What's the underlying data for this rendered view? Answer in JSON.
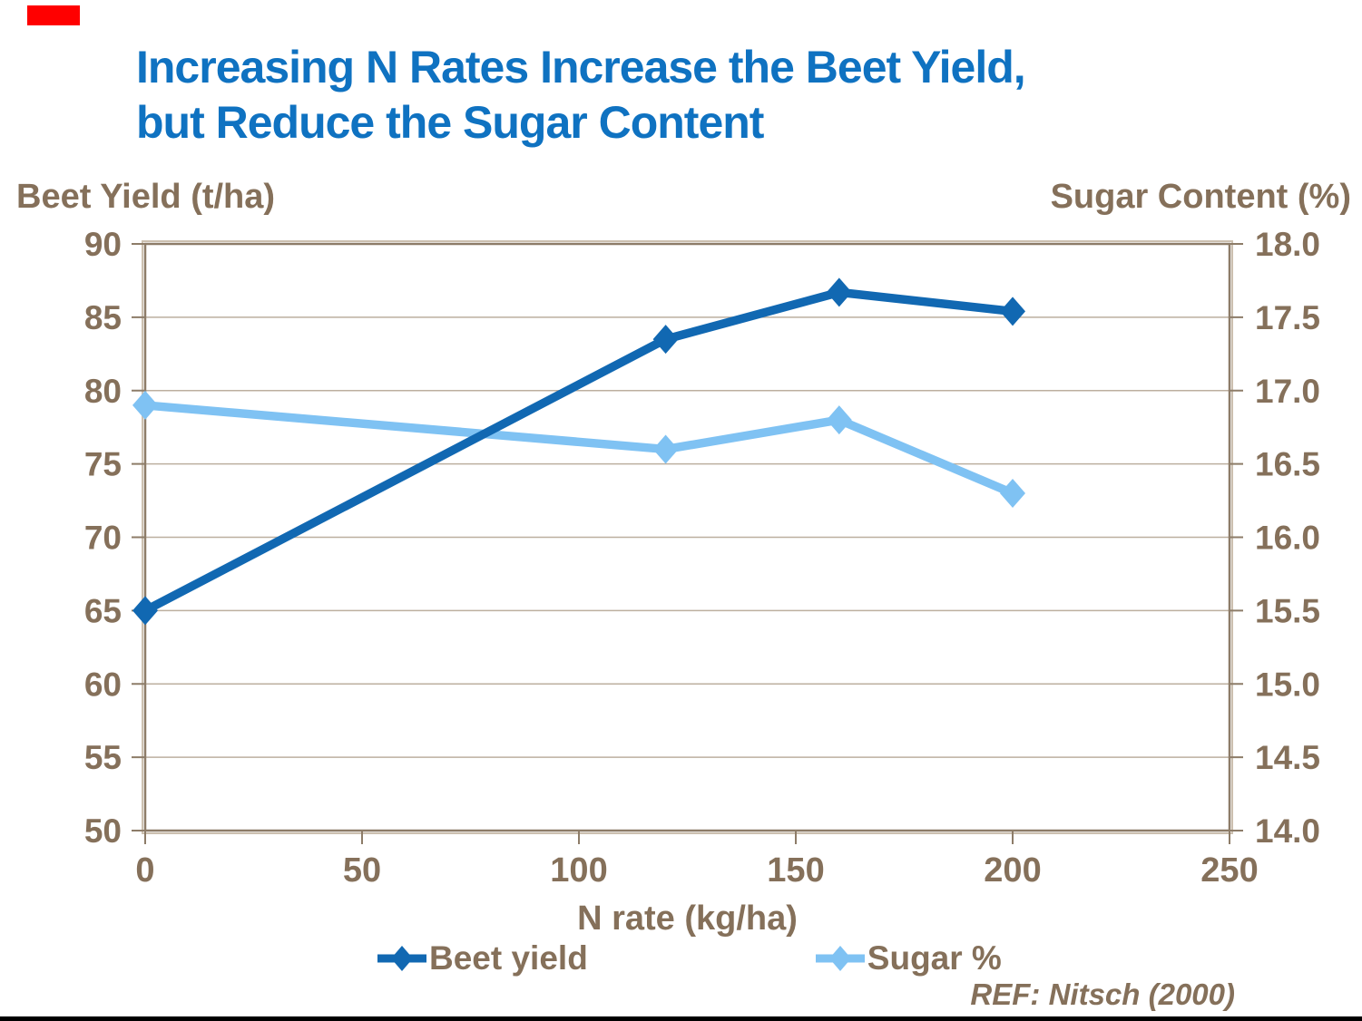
{
  "slide": {
    "title_line1": "Increasing N Rates Increase the Beet Yield,",
    "title_line2": "but Reduce the Sugar Content",
    "reference": "REF: Nitsch (2000)",
    "colors": {
      "title": "#0F72C1",
      "axis_text": "#85705A",
      "grid": "#BCAF9F",
      "frame": "#8D7C68",
      "frame_shadow": "#CCC0B0",
      "beet": "#1168B2",
      "sugar": "#7FC2F3",
      "accent_red": "#FF0000",
      "footer_bar": "#000000"
    }
  },
  "chart_data": {
    "type": "line",
    "x": [
      0,
      120,
      160,
      200
    ],
    "series": [
      {
        "name": "Beet yield",
        "axis": "left",
        "color": "#1168B2",
        "values": [
          65,
          83.5,
          86.7,
          85.4
        ]
      },
      {
        "name": "Sugar %",
        "axis": "right",
        "color": "#7FC2F3",
        "values": [
          16.9,
          16.6,
          16.8,
          16.3
        ]
      }
    ],
    "xlabel": "N rate (kg/ha)",
    "xlim": [
      0,
      250
    ],
    "x_ticks": [
      0,
      50,
      100,
      150,
      200,
      250
    ],
    "left_axis": {
      "label": "Beet Yield (t/ha)",
      "lim": [
        50,
        90
      ],
      "ticks": [
        90,
        85,
        80,
        75,
        70,
        65,
        60,
        55,
        50
      ]
    },
    "right_axis": {
      "label": "Sugar Content (%)",
      "lim": [
        14,
        18
      ],
      "ticks": [
        "18.0",
        "17.5",
        "17.0",
        "16.5",
        "16.0",
        "15.5",
        "15.0",
        "14.5",
        "14.0"
      ]
    },
    "grid": true,
    "legend_position": "bottom",
    "marker": "diamond"
  }
}
